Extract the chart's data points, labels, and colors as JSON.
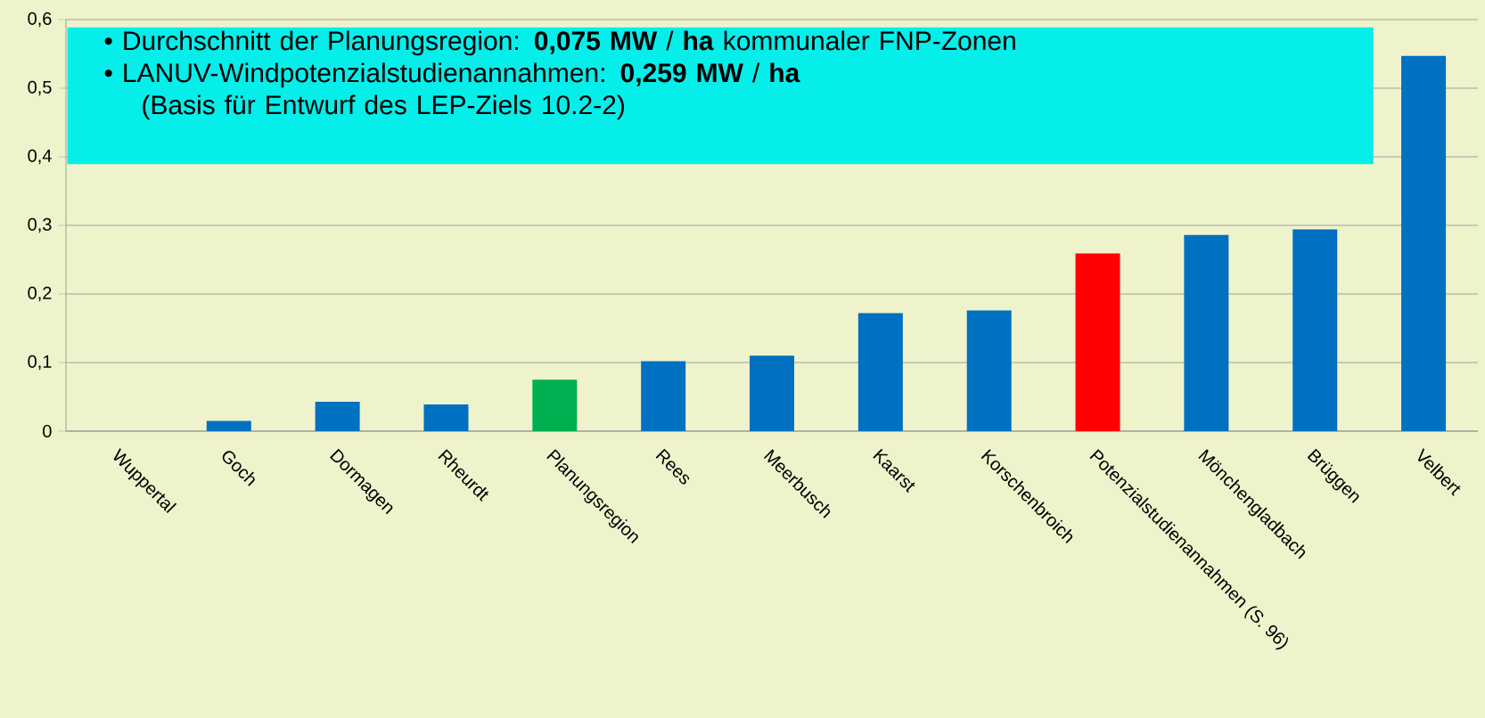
{
  "chart_data": {
    "type": "bar",
    "categories": [
      "Wuppertal",
      "Goch",
      "Dormagen",
      "Rheurdt",
      "Planungsregion",
      "Rees",
      "Meerbusch",
      "Kaarst",
      "Korschenbroich",
      "Potenzialstudienannahmen (S. 96)",
      "Mönchengladbach",
      "Brüggen",
      "Velbert"
    ],
    "values": [
      0,
      0.015,
      0.043,
      0.039,
      0.075,
      0.102,
      0.11,
      0.172,
      0.176,
      0.259,
      0.286,
      0.294,
      0.547
    ],
    "colors": [
      "#0070c0",
      "#0070c0",
      "#0070c0",
      "#0070c0",
      "#00b050",
      "#0070c0",
      "#0070c0",
      "#0070c0",
      "#0070c0",
      "#ff0000",
      "#0070c0",
      "#0070c0",
      "#0070c0"
    ],
    "ylim": [
      0,
      0.6
    ],
    "yticks": [
      0,
      {
        "value": 0.1,
        "label": "0,1"
      },
      {
        "value": 0.2,
        "label": "0,2"
      },
      {
        "value": 0.3,
        "label": "0,3"
      },
      {
        "value": 0.4,
        "label": "0,4"
      },
      {
        "value": 0.5,
        "label": "0,5"
      },
      {
        "value": 0.6,
        "label": "0,6"
      }
    ],
    "grid": "y",
    "annotations": [
      "• Durchschnitt der Planungsregion: **0,075 MW** / **ha** kommunaler FNP-Zonen",
      "• LANUV-Windpotenzialstudienannahmen: **0,259 MW** / **ha**",
      "(Basis für Entwurf des LEP-Ziels 10.2-2)"
    ]
  }
}
